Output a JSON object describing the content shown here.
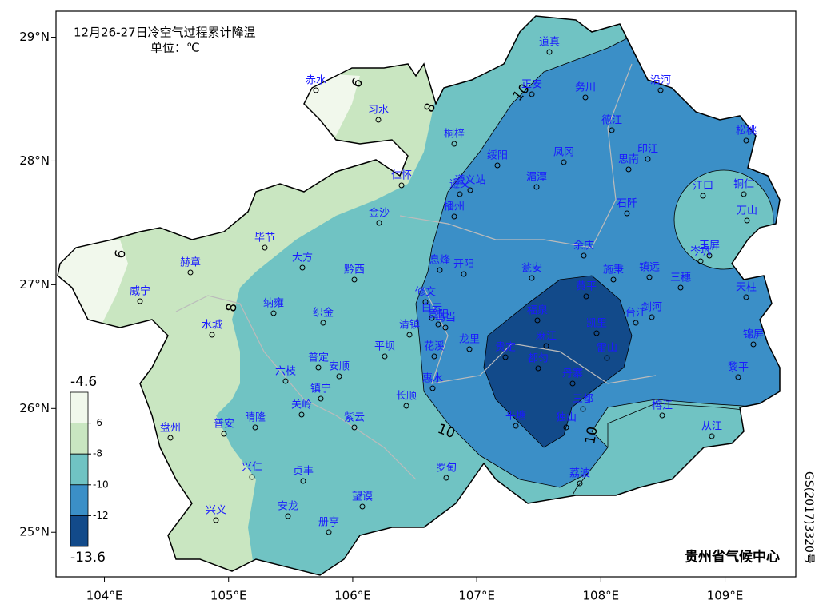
{
  "title": "12月26-27日冷空气过程累计降温",
  "unit": "单位：℃",
  "map": {
    "xlim": [
      103.61,
      109.57
    ],
    "ylim": [
      24.64,
      29.21
    ],
    "xticks": [
      {
        "value": 104,
        "label": "104°E"
      },
      {
        "value": 105,
        "label": "105°E"
      },
      {
        "value": 106,
        "label": "106°E"
      },
      {
        "value": 107,
        "label": "107°E"
      },
      {
        "value": 108,
        "label": "108°E"
      },
      {
        "value": 109,
        "label": "109°E"
      }
    ],
    "yticks": [
      {
        "value": 25,
        "label": "25°N"
      },
      {
        "value": 26,
        "label": "26°N"
      },
      {
        "value": 27,
        "label": "27°N"
      },
      {
        "value": 28,
        "label": "28°N"
      },
      {
        "value": 29,
        "label": "29°N"
      }
    ]
  },
  "colorbar": {
    "bounds": [
      -4.6,
      -6,
      -8,
      -10,
      -12,
      -13.6
    ],
    "colors": [
      "#f1f8ec",
      "#c9e6c1",
      "#70c3c3",
      "#3b8fc7",
      "#124a8a"
    ]
  },
  "contour_labels": [
    6,
    6,
    8,
    8,
    10,
    10,
    10
  ],
  "cities": [
    "赤水",
    "习水",
    "道真",
    "正安",
    "务川",
    "沿河",
    "德江",
    "桐梓",
    "绥阳",
    "凤冈",
    "印江",
    "思南",
    "松桃",
    "仁怀",
    "遵义",
    "遵义站",
    "湄潭",
    "江口",
    "铜仁",
    "播州",
    "金沙",
    "石阡",
    "万山",
    "毕节",
    "大方",
    "玉屏",
    "岑巩",
    "余庆",
    "赫章",
    "黔西",
    "息烽",
    "开阳",
    "瓮安",
    "施秉",
    "镇远",
    "三穗",
    "天柱",
    "威宁",
    "黄平",
    "修文",
    "纳雍",
    "织金",
    "白云",
    "贵阳",
    "乌当",
    "福泉",
    "凯里",
    "台江",
    "剑河",
    "水城",
    "清镇",
    "贵定",
    "麻江",
    "龙里",
    "花溪",
    "雷山",
    "锦屏",
    "平坝",
    "普定",
    "安顺",
    "六枝",
    "都匀",
    "丹寨",
    "惠水",
    "镇宁",
    "黎平",
    "长顺",
    "关岭",
    "三都",
    "榕江",
    "盘州",
    "普安",
    "晴隆",
    "紫云",
    "平塘",
    "独山",
    "从江",
    "兴仁",
    "贞丰",
    "罗甸",
    "荔波",
    "兴义",
    "安龙",
    "望谟",
    "册亨"
  ],
  "credit": "贵州省气候中心",
  "approval": "GS(2017)3320号"
}
